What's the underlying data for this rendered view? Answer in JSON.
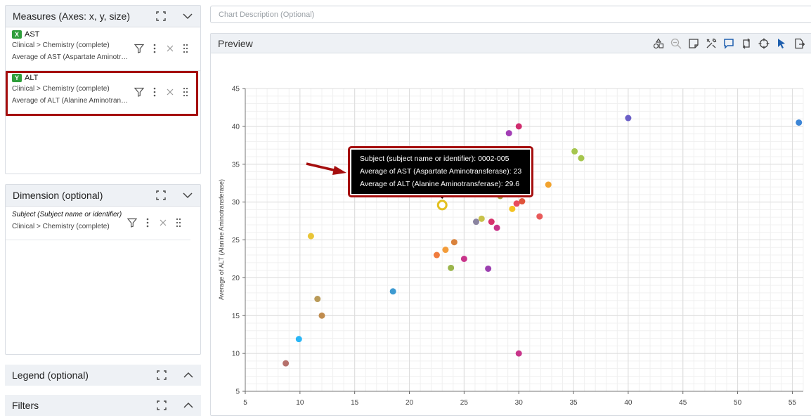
{
  "measures_panel": {
    "title": "Measures (Axes: x, y, size)",
    "items": [
      {
        "axis": "X",
        "name": "AST",
        "path": "Clinical > Chemistry (complete)",
        "detail": "Average of AST (Aspartate Aminotransferase)"
      },
      {
        "axis": "Y",
        "name": "ALT",
        "path": "Clinical > Chemistry (complete)",
        "detail": "Average of ALT (Alanine Aminotransferase)"
      }
    ]
  },
  "dimension_panel": {
    "title": "Dimension (optional)",
    "item": {
      "name": "Subject (Subject name or identifier)",
      "path": "Clinical > Chemistry (complete)"
    }
  },
  "legend_panel": {
    "title": "Legend (optional)"
  },
  "filters_panel": {
    "title": "Filters"
  },
  "chart_description": {
    "placeholder": "Chart Description (Optional)",
    "value": ""
  },
  "preview": {
    "title": "Preview"
  },
  "tooltip": {
    "lines": [
      "Subject (subject name or identifier): 0002-005",
      "Average of AST (Aspartate Aminotransferase): 23",
      "Average of ALT (Alanine Aminotransferase): 29.6"
    ]
  },
  "colors": {
    "accent": "#2e9e3a",
    "highlight": "#a50e0e",
    "gridline": "#e6e6e6"
  },
  "chart_data": {
    "type": "scatter",
    "ylabel": "Average of ALT (Alanine Aminotransferase)",
    "xlim": [
      5,
      56
    ],
    "ylim": [
      5,
      45
    ],
    "x_ticks": [
      5,
      10,
      15,
      20,
      25,
      30,
      35,
      40,
      45,
      50,
      55
    ],
    "y_ticks": [
      5,
      10,
      15,
      20,
      25,
      30,
      35,
      40,
      45
    ],
    "grid": true,
    "points": [
      {
        "x": 8.7,
        "y": 8.7,
        "color": "#b5706b"
      },
      {
        "x": 9.9,
        "y": 11.9,
        "color": "#29b6f6"
      },
      {
        "x": 11,
        "y": 25.5,
        "color": "#e9c537"
      },
      {
        "x": 11.6,
        "y": 17.2,
        "color": "#b99a58"
      },
      {
        "x": 12,
        "y": 15,
        "color": "#c08c4e"
      },
      {
        "x": 18.5,
        "y": 18.2,
        "color": "#3d9ad1"
      },
      {
        "x": 22.5,
        "y": 23,
        "color": "#f07c3e"
      },
      {
        "x": 23.3,
        "y": 23.7,
        "color": "#f39c3a"
      },
      {
        "x": 23.8,
        "y": 21.3,
        "color": "#9bb54c"
      },
      {
        "x": 24.1,
        "y": 24.7,
        "color": "#d9823c"
      },
      {
        "x": 25,
        "y": 22.5,
        "color": "#c8348a"
      },
      {
        "x": 26.1,
        "y": 27.4,
        "color": "#8a84a0"
      },
      {
        "x": 26.6,
        "y": 27.8,
        "color": "#c8c24a"
      },
      {
        "x": 27.2,
        "y": 21.2,
        "color": "#9c3fb0"
      },
      {
        "x": 27.5,
        "y": 27.4,
        "color": "#d6336c"
      },
      {
        "x": 28,
        "y": 26.6,
        "color": "#c8348a"
      },
      {
        "x": 28.3,
        "y": 30.8,
        "color": "#a59a3a"
      },
      {
        "x": 29.1,
        "y": 39.1,
        "color": "#a23db5"
      },
      {
        "x": 29.4,
        "y": 29.1,
        "color": "#f4c220"
      },
      {
        "x": 29.8,
        "y": 29.8,
        "color": "#e84b5c"
      },
      {
        "x": 30,
        "y": 40,
        "color": "#d02c6e"
      },
      {
        "x": 30,
        "y": 10,
        "color": "#c8348a"
      },
      {
        "x": 30.3,
        "y": 30.1,
        "color": "#e0533a"
      },
      {
        "x": 31.9,
        "y": 28.1,
        "color": "#e85a5a"
      },
      {
        "x": 32.7,
        "y": 32.3,
        "color": "#f2a32e"
      },
      {
        "x": 35.1,
        "y": 36.7,
        "color": "#a6c64e"
      },
      {
        "x": 35.7,
        "y": 35.8,
        "color": "#a6c64e"
      },
      {
        "x": 40,
        "y": 41.1,
        "color": "#6b5fc7"
      },
      {
        "x": 55.6,
        "y": 40.5,
        "color": "#3d86d6"
      }
    ],
    "selected_point": {
      "x": 23,
      "y": 29.6,
      "color": "#e3c020"
    }
  }
}
